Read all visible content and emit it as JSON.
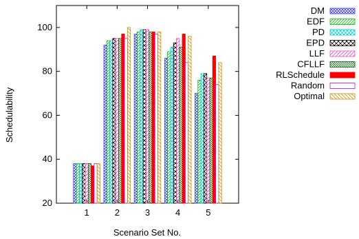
{
  "chart_data": {
    "type": "bar",
    "xlabel": "Scenario Set No.",
    "ylabel": "Schedulability",
    "ylim": [
      20,
      110
    ],
    "yticks": [
      20,
      40,
      60,
      80,
      100
    ],
    "categories": [
      "1",
      "2",
      "3",
      "4",
      "5"
    ],
    "legend_position": "right",
    "grid": false,
    "series": [
      {
        "name": "DM",
        "color": "#4040ff",
        "pattern": "crosshatch",
        "values": [
          38,
          92,
          97,
          86,
          70
        ]
      },
      {
        "name": "EDF",
        "color": "#00c000",
        "pattern": "diagonal",
        "values": [
          38,
          94,
          98,
          89,
          76
        ]
      },
      {
        "name": "PD",
        "color": "#00d0d0",
        "pattern": "crosshatch",
        "values": [
          38,
          94,
          99,
          91,
          79
        ]
      },
      {
        "name": "EPD",
        "color": "#000000",
        "pattern": "crosshatch",
        "values": [
          38,
          95,
          99,
          93,
          79
        ]
      },
      {
        "name": "LLF",
        "color": "#ff40c0",
        "pattern": "diagonal",
        "values": [
          38,
          95,
          99,
          95,
          77
        ]
      },
      {
        "name": "CFLLF",
        "color": "#006000",
        "pattern": "diagonal-rev",
        "values": [
          38,
          95,
          98,
          91,
          77
        ]
      },
      {
        "name": "RLSchedule",
        "color": "#ff0000",
        "pattern": "solid",
        "values": [
          37,
          97,
          98,
          97,
          87
        ]
      },
      {
        "name": "Random",
        "color": "#c000ff",
        "pattern": "empty",
        "values": [
          38,
          95,
          97,
          84,
          74
        ]
      },
      {
        "name": "Optimal",
        "color": "#d09000",
        "pattern": "diagonal-rev",
        "values": [
          38,
          100,
          98,
          96,
          84
        ]
      }
    ]
  }
}
